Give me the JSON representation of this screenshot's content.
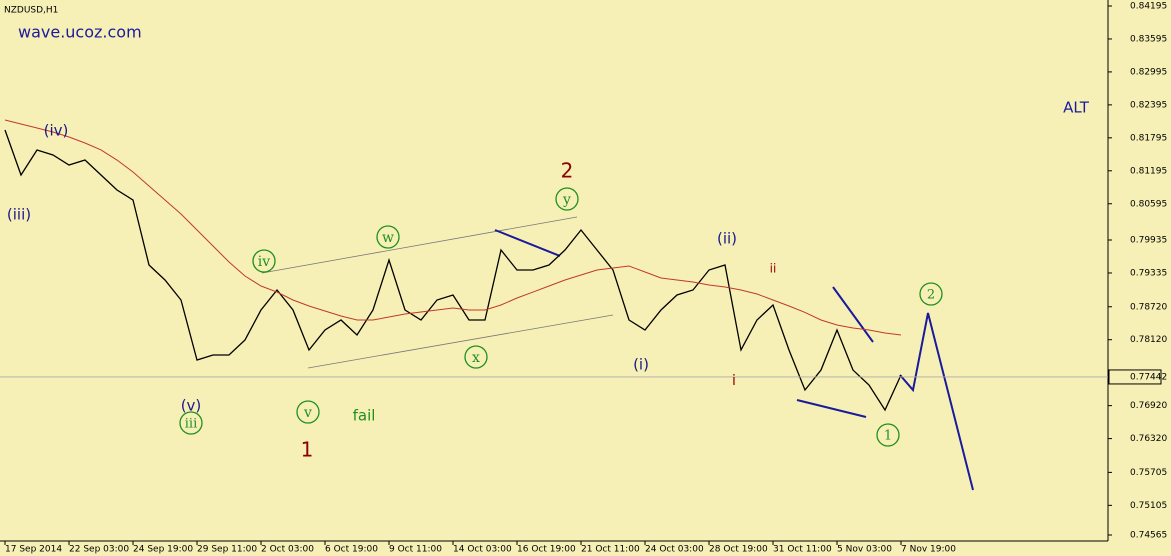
{
  "chart_data": {
    "type": "line",
    "title": "NZDUSD,H1",
    "watermark": "wave.ucoz.com",
    "label": "ALT",
    "categories": [
      "17 Sep 2014",
      null,
      null,
      null,
      "22 Sep 03:00",
      null,
      null,
      null,
      "24 Sep 19:00",
      null,
      null,
      null,
      "29 Sep 11:00",
      null,
      null,
      null,
      "2 Oct 03:00",
      null,
      null,
      null,
      "6 Oct 19:00",
      null,
      null,
      null,
      "9 Oct 11:00",
      null,
      null,
      null,
      "14 Oct 03:00",
      null,
      null,
      null,
      "16 Oct 19:00",
      null,
      null,
      null,
      "21 Oct 11:00",
      null,
      null,
      null,
      "24 Oct 03:00",
      null,
      null,
      null,
      "28 Oct 19:00",
      null,
      null,
      null,
      "31 Oct 11:00",
      null,
      null,
      null,
      "5 Nov 03:00",
      null,
      null,
      null,
      "7 Nov 19:00"
    ],
    "series": [
      {
        "color": "#000000",
        "values": [
          0.81938,
          0.81118,
          0.81574,
          0.81483,
          0.813,
          0.81391,
          0.81118,
          0.80845,
          0.80663,
          0.7948,
          0.79207,
          0.78843,
          0.7775,
          0.77842,
          0.77842,
          0.78115,
          0.78661,
          0.79025,
          0.78661,
          0.77933,
          0.78297,
          0.78479,
          0.78206,
          0.78661,
          0.79571,
          0.78661,
          0.78479,
          0.78843,
          0.78934,
          0.78479,
          0.78479,
          0.79753,
          0.79389,
          0.79389,
          0.7948,
          0.79753,
          0.80117,
          0.79753,
          0.79389,
          0.78479,
          0.78297,
          0.78661,
          0.78934,
          0.79025,
          0.79389,
          0.7948,
          0.77933,
          0.78479,
          0.78752,
          0.77933,
          0.77204,
          0.77568,
          0.78297,
          0.77568,
          0.77295,
          0.7684,
          0.77477
        ]
      },
      {
        "color": "#c0392b",
        "values": [
          0.8212,
          0.82047,
          0.81974,
          0.81901,
          0.8181,
          0.81701,
          0.81574,
          0.81391,
          0.81173,
          0.80918,
          0.80663,
          0.80408,
          0.80117,
          0.79826,
          0.79535,
          0.7928,
          0.79098,
          0.78988,
          0.78843,
          0.78734,
          0.78643,
          0.78551,
          0.78479,
          0.78479,
          0.78533,
          0.78588,
          0.78624,
          0.78661,
          0.78697,
          0.78661,
          0.78661,
          0.78752,
          0.78879,
          0.78988,
          0.79098,
          0.79207,
          0.79298,
          0.79389,
          0.79425,
          0.79462,
          0.79353,
          0.79243,
          0.79207,
          0.7917,
          0.79116,
          0.79079,
          0.79025,
          0.78952,
          0.78843,
          0.78734,
          0.78616,
          0.78479,
          0.78388,
          0.78333,
          0.78297,
          0.78242,
          0.78206
        ]
      }
    ],
    "current_price": 0.77442,
    "ylim": [
      0.74565,
      0.84195
    ],
    "yticks": [
      0.84195,
      0.83595,
      0.82995,
      0.82395,
      0.81795,
      0.81195,
      0.80595,
      0.79935,
      0.79335,
      {
        "value": 0.7872,
        "label": "0.78720"
      },
      {
        "value": 0.7812,
        "label": "0.78120"
      },
      {
        "value": 0.7692,
        "label": "0.76920"
      },
      {
        "value": 0.7632,
        "label": "0.76320"
      },
      0.75705,
      0.75105,
      0.74565
    ],
    "wave_labels": [
      "(iv)",
      "(iii)",
      "iv",
      "(v)",
      "iii",
      "v",
      "1",
      "fail",
      "w",
      "x",
      "y",
      "2",
      "(ii)",
      "(i)",
      "i",
      "ii",
      "1",
      "2"
    ]
  }
}
